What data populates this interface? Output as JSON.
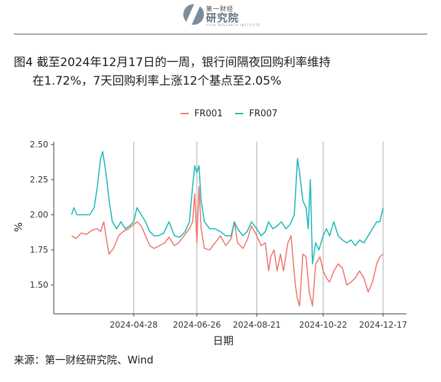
{
  "header": {
    "logo_top": "第一财经",
    "logo_main": "研究院",
    "logo_sub": "YICAI RESEARCH INSTITUTE"
  },
  "title": {
    "line1": "图4  截至2024年12月17日的一周，银行间隔夜回购利率维持",
    "line2": "在1.72%，7天回购利率上涨12个基点至2.05%"
  },
  "source": "来源：第一财经研究院、Wind",
  "colors": {
    "FR001": "#f07670",
    "FR007": "#1fb8b8"
  },
  "chart_data": {
    "type": "line",
    "title": "",
    "xlabel": "日期",
    "ylabel": "%",
    "ylim": [
      1.3,
      2.55
    ],
    "y_ticks": [
      "2.50",
      "2.25",
      "2.00",
      "1.75",
      "1.50"
    ],
    "x_ticks": [
      "2024-04-28",
      "2024-06-26",
      "2024-08-21",
      "2024-10-22",
      "2024-12-17"
    ],
    "x_range": [
      "2024-03-01",
      "2024-12-17"
    ],
    "grid": "vertical only",
    "legend_position": "top",
    "series": [
      {
        "name": "FR001",
        "points": [
          [
            "2024-03-01",
            1.85
          ],
          [
            "2024-03-05",
            1.83
          ],
          [
            "2024-03-10",
            1.87
          ],
          [
            "2024-03-15",
            1.86
          ],
          [
            "2024-03-20",
            1.89
          ],
          [
            "2024-03-25",
            1.9
          ],
          [
            "2024-03-28",
            1.88
          ],
          [
            "2024-03-31",
            1.95
          ],
          [
            "2024-04-03",
            1.8
          ],
          [
            "2024-04-05",
            1.72
          ],
          [
            "2024-04-09",
            1.76
          ],
          [
            "2024-04-14",
            1.85
          ],
          [
            "2024-04-18",
            1.88
          ],
          [
            "2024-04-23",
            1.9
          ],
          [
            "2024-04-28",
            1.93
          ],
          [
            "2024-05-01",
            1.95
          ],
          [
            "2024-05-05",
            1.92
          ],
          [
            "2024-05-09",
            1.85
          ],
          [
            "2024-05-13",
            1.78
          ],
          [
            "2024-05-17",
            1.76
          ],
          [
            "2024-05-22",
            1.78
          ],
          [
            "2024-05-27",
            1.8
          ],
          [
            "2024-05-31",
            1.84
          ],
          [
            "2024-06-05",
            1.78
          ],
          [
            "2024-06-09",
            1.8
          ],
          [
            "2024-06-14",
            1.85
          ],
          [
            "2024-06-19",
            1.9
          ],
          [
            "2024-06-22",
            1.95
          ],
          [
            "2024-06-24",
            2.15
          ],
          [
            "2024-06-26",
            1.8
          ],
          [
            "2024-06-28",
            2.2
          ],
          [
            "2024-06-30",
            1.9
          ],
          [
            "2024-07-03",
            1.76
          ],
          [
            "2024-07-08",
            1.75
          ],
          [
            "2024-07-13",
            1.8
          ],
          [
            "2024-07-18",
            1.85
          ],
          [
            "2024-07-23",
            1.78
          ],
          [
            "2024-07-28",
            1.83
          ],
          [
            "2024-07-31",
            1.95
          ],
          [
            "2024-08-03",
            1.8
          ],
          [
            "2024-08-08",
            1.76
          ],
          [
            "2024-08-12",
            1.82
          ],
          [
            "2024-08-16",
            1.92
          ],
          [
            "2024-08-21",
            1.85
          ],
          [
            "2024-08-25",
            1.78
          ],
          [
            "2024-08-29",
            1.8
          ],
          [
            "2024-09-01",
            1.6
          ],
          [
            "2024-09-03",
            1.7
          ],
          [
            "2024-09-06",
            1.75
          ],
          [
            "2024-09-09",
            1.6
          ],
          [
            "2024-09-12",
            1.72
          ],
          [
            "2024-09-15",
            1.6
          ],
          [
            "2024-09-19",
            1.8
          ],
          [
            "2024-09-22",
            1.85
          ],
          [
            "2024-09-26",
            1.5
          ],
          [
            "2024-09-28",
            1.4
          ],
          [
            "2024-09-30",
            1.35
          ],
          [
            "2024-10-03",
            1.72
          ],
          [
            "2024-10-06",
            1.7
          ],
          [
            "2024-10-09",
            1.45
          ],
          [
            "2024-10-12",
            1.35
          ],
          [
            "2024-10-15",
            1.65
          ],
          [
            "2024-10-19",
            1.7
          ],
          [
            "2024-10-22",
            1.6
          ],
          [
            "2024-10-25",
            1.55
          ],
          [
            "2024-10-28",
            1.52
          ],
          [
            "2024-11-01",
            1.6
          ],
          [
            "2024-11-05",
            1.65
          ],
          [
            "2024-11-09",
            1.62
          ],
          [
            "2024-11-13",
            1.5
          ],
          [
            "2024-11-17",
            1.52
          ],
          [
            "2024-11-21",
            1.55
          ],
          [
            "2024-11-25",
            1.6
          ],
          [
            "2024-11-29",
            1.55
          ],
          [
            "2024-12-03",
            1.45
          ],
          [
            "2024-12-07",
            1.52
          ],
          [
            "2024-12-11",
            1.65
          ],
          [
            "2024-12-14",
            1.7
          ],
          [
            "2024-12-17",
            1.72
          ]
        ]
      },
      {
        "name": "FR007",
        "points": [
          [
            "2024-03-01",
            2.0
          ],
          [
            "2024-03-03",
            2.05
          ],
          [
            "2024-03-06",
            2.0
          ],
          [
            "2024-03-12",
            2.0
          ],
          [
            "2024-03-18",
            2.0
          ],
          [
            "2024-03-22",
            2.05
          ],
          [
            "2024-03-25",
            2.2
          ],
          [
            "2024-03-28",
            2.4
          ],
          [
            "2024-03-30",
            2.45
          ],
          [
            "2024-04-02",
            2.3
          ],
          [
            "2024-04-05",
            2.1
          ],
          [
            "2024-04-08",
            1.95
          ],
          [
            "2024-04-12",
            1.9
          ],
          [
            "2024-04-16",
            1.95
          ],
          [
            "2024-04-20",
            1.9
          ],
          [
            "2024-04-24",
            1.92
          ],
          [
            "2024-04-28",
            1.95
          ],
          [
            "2024-05-01",
            2.05
          ],
          [
            "2024-05-05",
            2.0
          ],
          [
            "2024-05-09",
            1.95
          ],
          [
            "2024-05-13",
            1.88
          ],
          [
            "2024-05-17",
            1.85
          ],
          [
            "2024-05-21",
            1.85
          ],
          [
            "2024-05-26",
            1.87
          ],
          [
            "2024-05-31",
            1.95
          ],
          [
            "2024-06-05",
            1.85
          ],
          [
            "2024-06-10",
            1.84
          ],
          [
            "2024-06-15",
            1.88
          ],
          [
            "2024-06-19",
            1.95
          ],
          [
            "2024-06-22",
            2.2
          ],
          [
            "2024-06-24",
            2.35
          ],
          [
            "2024-06-26",
            2.3
          ],
          [
            "2024-06-28",
            2.35
          ],
          [
            "2024-06-30",
            2.1
          ],
          [
            "2024-07-03",
            1.95
          ],
          [
            "2024-07-08",
            1.9
          ],
          [
            "2024-07-13",
            1.9
          ],
          [
            "2024-07-18",
            1.88
          ],
          [
            "2024-07-23",
            1.85
          ],
          [
            "2024-07-28",
            1.85
          ],
          [
            "2024-07-31",
            1.95
          ],
          [
            "2024-08-03",
            1.9
          ],
          [
            "2024-08-08",
            1.85
          ],
          [
            "2024-08-12",
            1.88
          ],
          [
            "2024-08-16",
            1.95
          ],
          [
            "2024-08-21",
            1.9
          ],
          [
            "2024-08-25",
            1.85
          ],
          [
            "2024-08-29",
            1.88
          ],
          [
            "2024-09-01",
            1.95
          ],
          [
            "2024-09-05",
            1.9
          ],
          [
            "2024-09-09",
            1.92
          ],
          [
            "2024-09-13",
            1.95
          ],
          [
            "2024-09-17",
            1.9
          ],
          [
            "2024-09-21",
            1.93
          ],
          [
            "2024-09-25",
            2.0
          ],
          [
            "2024-09-28",
            2.4
          ],
          [
            "2024-09-30",
            2.3
          ],
          [
            "2024-10-03",
            2.1
          ],
          [
            "2024-10-06",
            2.05
          ],
          [
            "2024-10-08",
            1.9
          ],
          [
            "2024-10-10",
            2.25
          ],
          [
            "2024-10-12",
            1.65
          ],
          [
            "2024-10-15",
            1.8
          ],
          [
            "2024-10-18",
            1.75
          ],
          [
            "2024-10-22",
            1.85
          ],
          [
            "2024-10-25",
            1.9
          ],
          [
            "2024-10-28",
            1.85
          ],
          [
            "2024-11-01",
            1.95
          ],
          [
            "2024-11-05",
            1.85
          ],
          [
            "2024-11-09",
            1.82
          ],
          [
            "2024-11-13",
            1.8
          ],
          [
            "2024-11-17",
            1.82
          ],
          [
            "2024-11-21",
            1.78
          ],
          [
            "2024-11-25",
            1.82
          ],
          [
            "2024-11-29",
            1.8
          ],
          [
            "2024-12-03",
            1.85
          ],
          [
            "2024-12-07",
            1.9
          ],
          [
            "2024-12-11",
            1.95
          ],
          [
            "2024-12-14",
            1.95
          ],
          [
            "2024-12-17",
            2.05
          ]
        ]
      }
    ]
  }
}
